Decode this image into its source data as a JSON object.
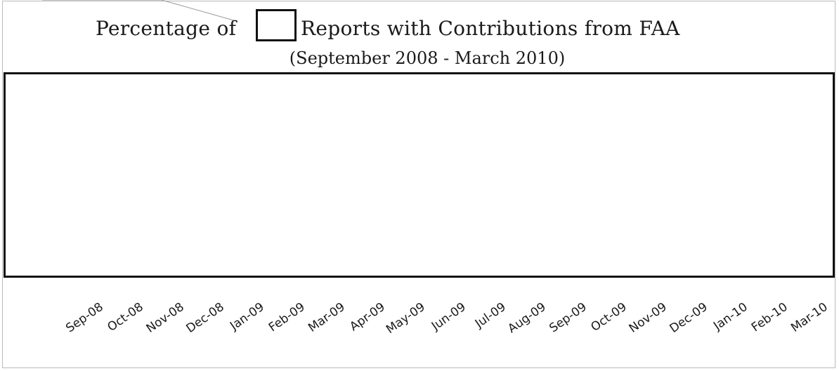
{
  "chart_data": {
    "type": "bar",
    "title_prefix": "Percentage of",
    "title_suffix": "Reports with Contributions from FAA",
    "subtitle": "(September 2008 - March 2010)",
    "categories": [
      "Sep-08",
      "Oct-08",
      "Nov-08",
      "Dec-08",
      "Jan-09",
      "Feb-09",
      "Mar-09",
      "Apr-09",
      "May-09",
      "Jun-09",
      "Jul-09",
      "Aug-09",
      "Sep-09",
      "Oct-09",
      "Nov-09",
      "Dec-09",
      "Jan-10",
      "Feb-10",
      "Mar-10"
    ],
    "xlabel": "",
    "ylabel": "",
    "grid": false,
    "legend": "none",
    "plot_area": "redacted"
  }
}
